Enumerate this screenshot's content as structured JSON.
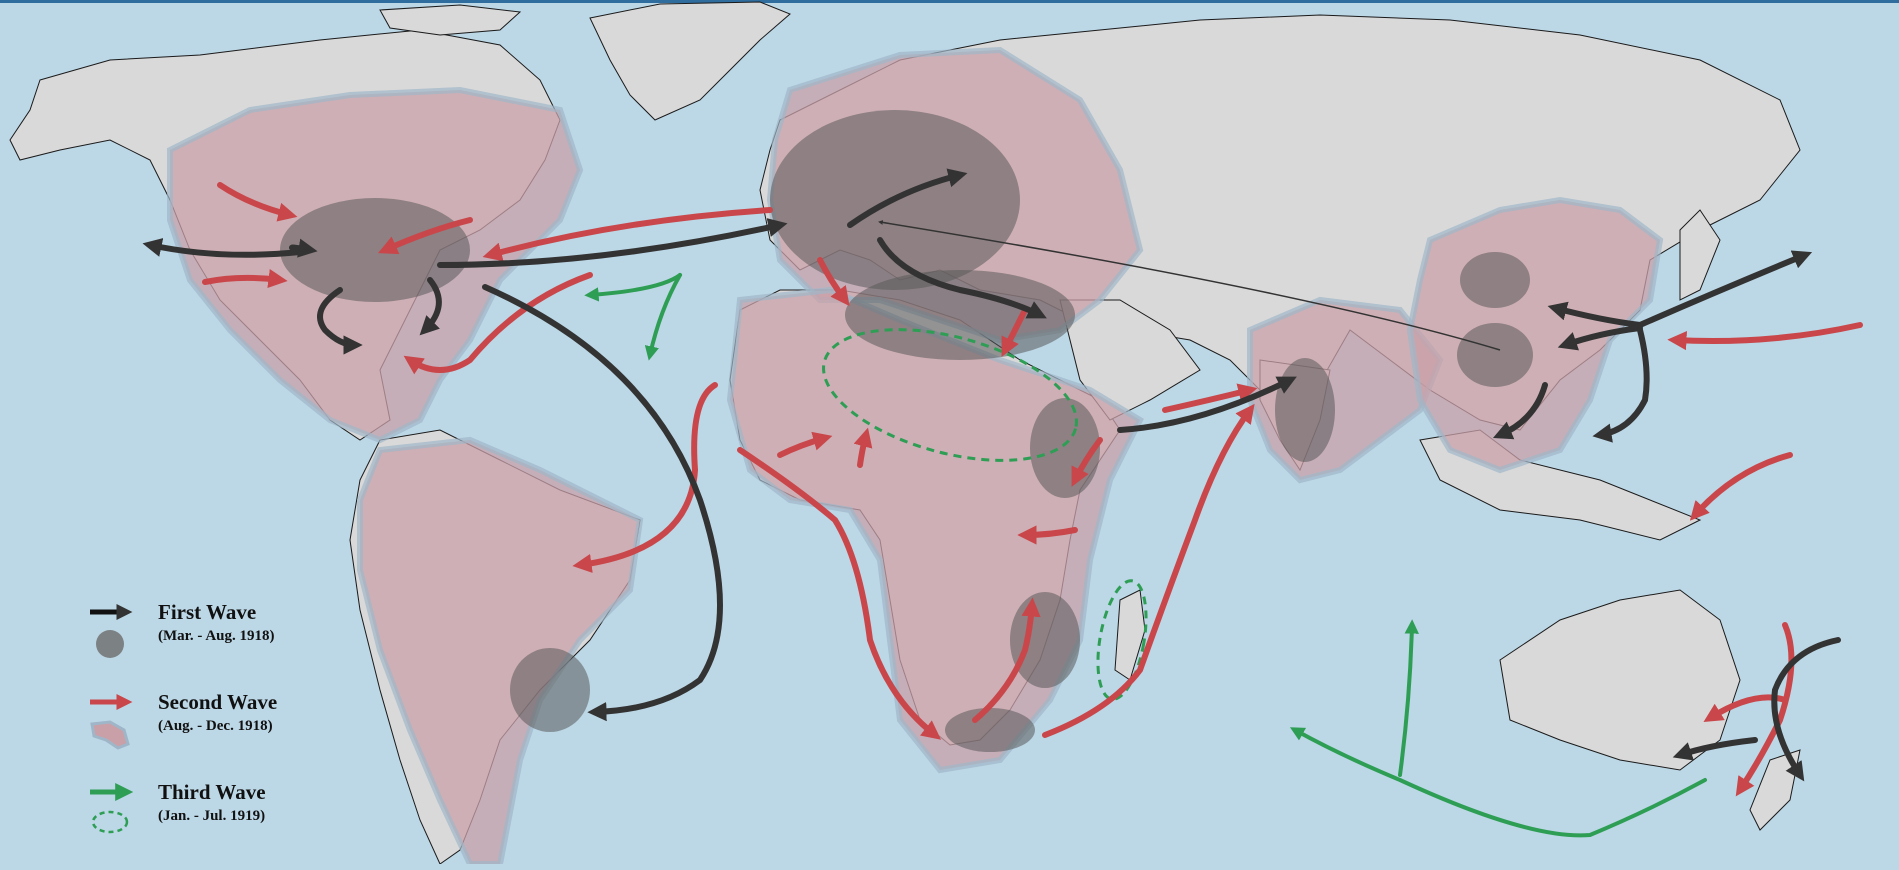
{
  "map": {
    "colors": {
      "ocean": "#bcd7e6",
      "land": "#d9d9d9",
      "coastline": "#1a1a1a",
      "first_wave": "#333333",
      "second_wave": "#c9474a",
      "second_wave_region": "#c9a0a8",
      "third_wave": "#2e9e55"
    }
  },
  "legend": {
    "first_wave": {
      "title": "First Wave",
      "dates": "(Mar. - Aug. 1918)",
      "symbols": [
        "black-arrow-icon",
        "grey-circle-icon"
      ]
    },
    "second_wave": {
      "title": "Second Wave",
      "dates": "(Aug. - Dec. 1918)",
      "symbols": [
        "red-arrow-icon",
        "pink-region-icon"
      ]
    },
    "third_wave": {
      "title": "Third Wave",
      "dates": "(Jan. - Jul. 1919)",
      "symbols": [
        "green-arrow-icon",
        "green-dashed-ellipse-icon"
      ]
    }
  }
}
